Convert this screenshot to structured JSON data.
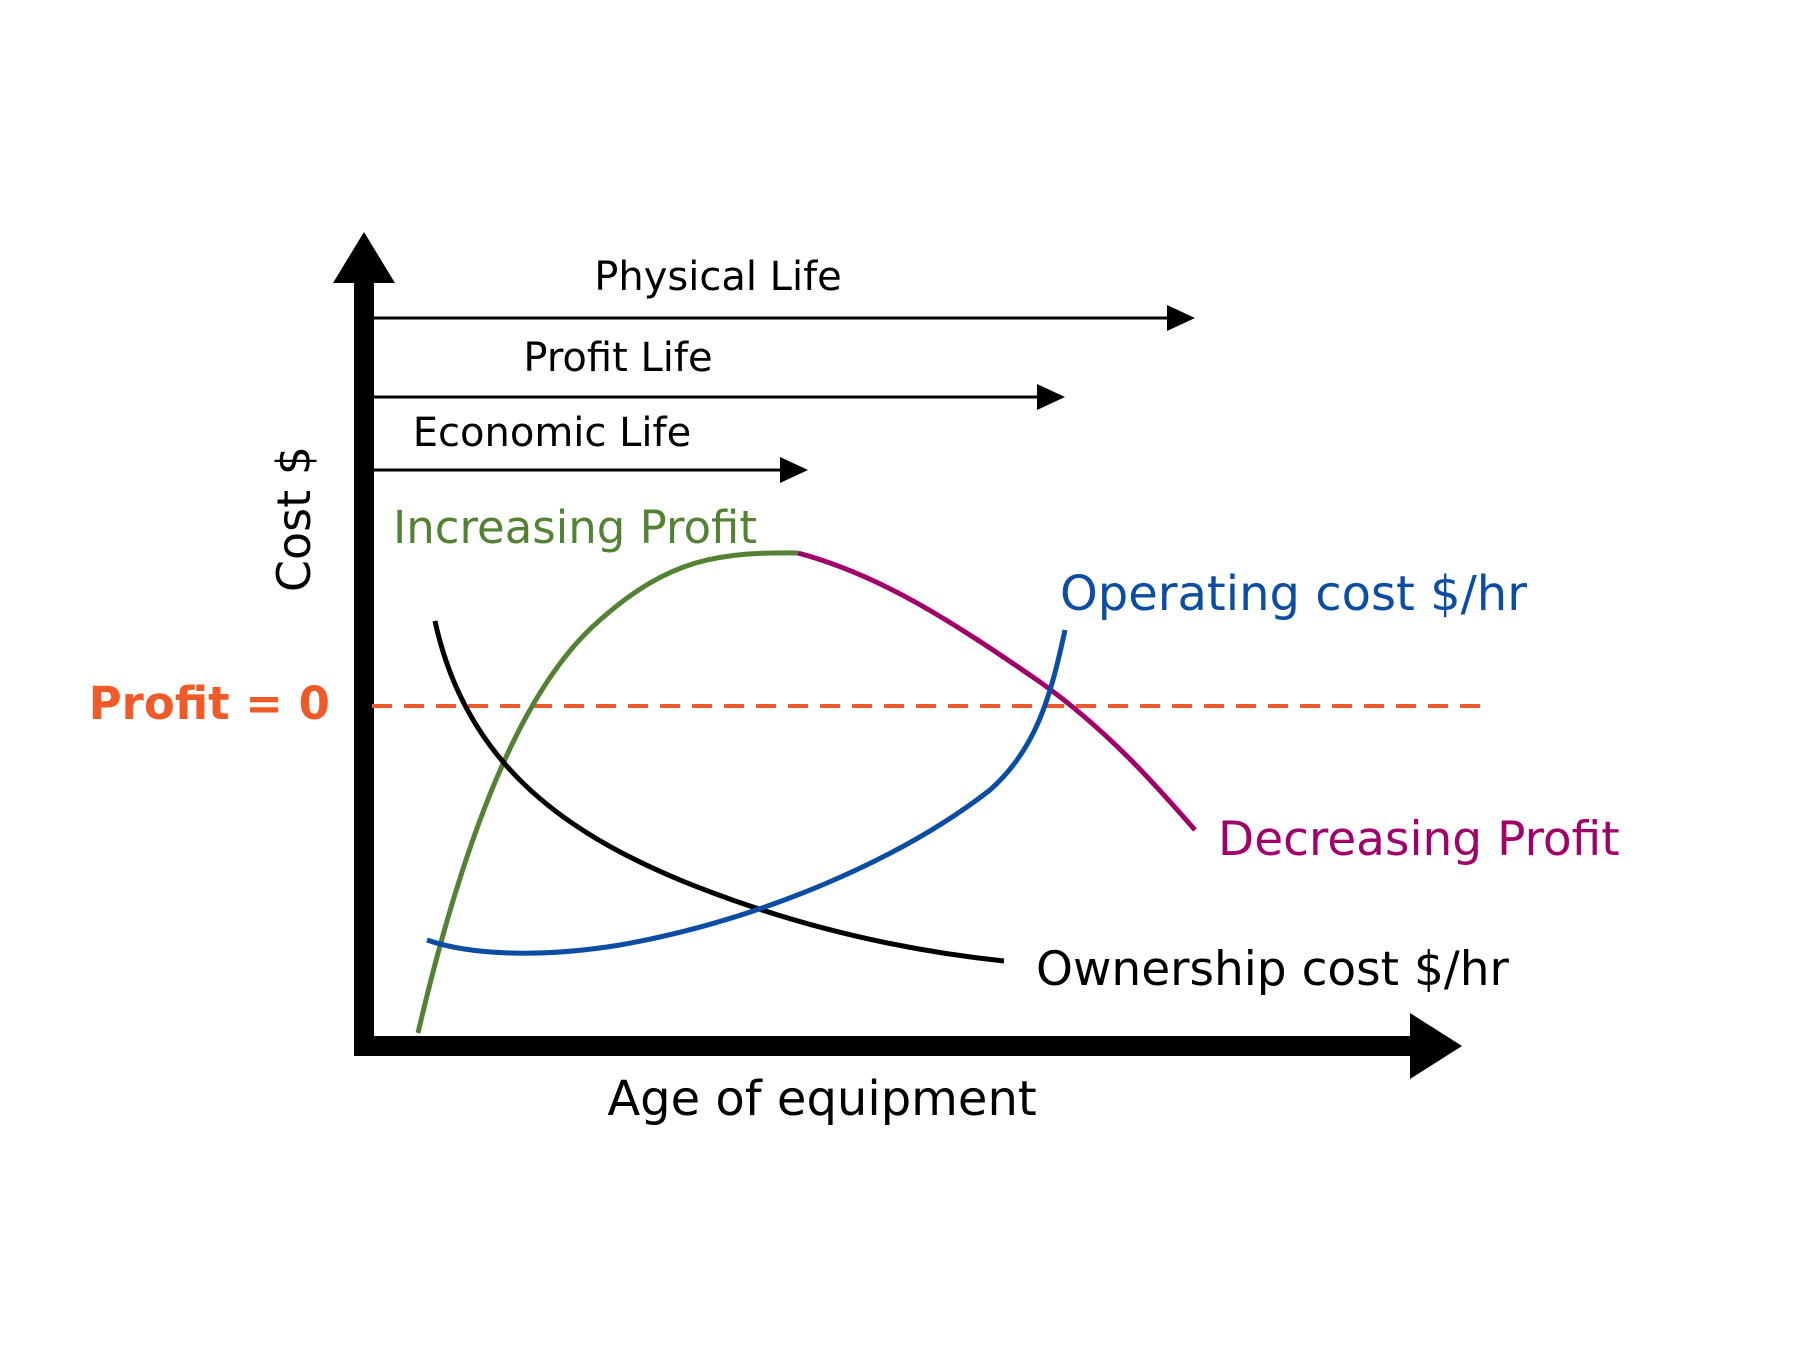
{
  "axes": {
    "x_label": "Age of equipment",
    "y_label": "Cost $"
  },
  "life_spans": [
    {
      "id": "physical",
      "label": "Physical Life"
    },
    {
      "id": "profit",
      "label": "Profit Life"
    },
    {
      "id": "economic",
      "label": "Economic Life"
    }
  ],
  "profit_zero": {
    "label": "Profit = 0"
  },
  "curves": {
    "increasing_profit": {
      "label": "Increasing Profit"
    },
    "decreasing_profit": {
      "label": "Decreasing Profit"
    },
    "operating_cost": {
      "label": "Operating cost $/hr"
    },
    "ownership_cost": {
      "label": "Ownership cost $/hr"
    }
  },
  "colors": {
    "axis": "#000000",
    "increasing_profit": "#548235",
    "decreasing_profit": "#A0006A",
    "operating_cost": "#0B4DA2",
    "ownership_cost": "#000000",
    "profit_zero": "#F05A28",
    "text": "#000000"
  }
}
